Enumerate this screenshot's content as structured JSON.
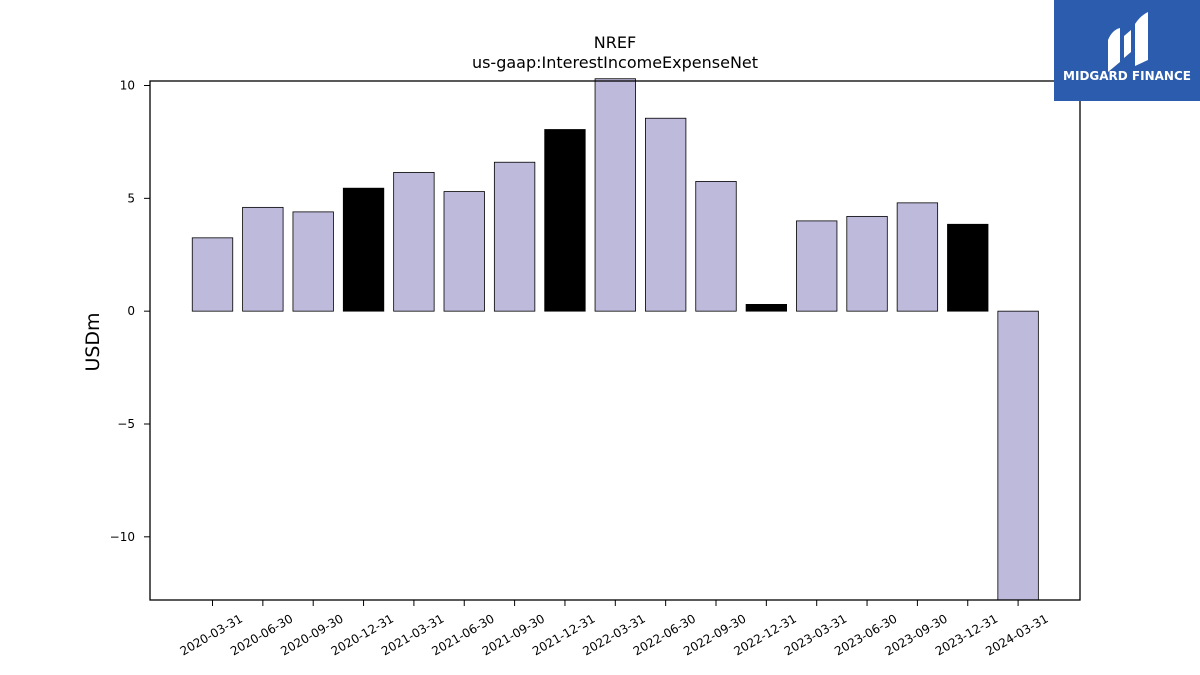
{
  "chart_data": {
    "type": "bar",
    "title": "NREF",
    "subtitle": "us-gaap:InterestIncomeExpenseNet",
    "ylabel": "USDm",
    "xlabel": "",
    "ylim": [
      -12.8,
      10.2
    ],
    "yticks": [
      10,
      5,
      0,
      -5,
      -10
    ],
    "ytick_labels": [
      "10",
      "5",
      "0",
      "−5",
      "−10"
    ],
    "grid": false,
    "categories": [
      "2020-03-31",
      "2020-06-30",
      "2020-09-30",
      "2020-12-31",
      "2021-03-31",
      "2021-06-30",
      "2021-09-30",
      "2021-12-31",
      "2022-03-31",
      "2022-06-30",
      "2022-09-30",
      "2022-12-31",
      "2023-03-31",
      "2023-06-30",
      "2023-09-30",
      "2023-12-31",
      "2024-03-31"
    ],
    "values": [
      3.25,
      4.6,
      4.4,
      5.45,
      6.15,
      5.3,
      6.6,
      8.05,
      10.3,
      8.55,
      5.75,
      0.3,
      4.0,
      4.2,
      4.8,
      3.85,
      -12.8
    ],
    "colors": [
      "#bebadb",
      "#bebadb",
      "#bebadb",
      "#000000",
      "#bebadb",
      "#bebadb",
      "#bebadb",
      "#000000",
      "#bebadb",
      "#bebadb",
      "#bebadb",
      "#000000",
      "#bebadb",
      "#bebadb",
      "#bebadb",
      "#000000",
      "#bebadb"
    ]
  },
  "logo": {
    "text": "MIDGARD FINANCE",
    "background": "#2b5cad"
  }
}
